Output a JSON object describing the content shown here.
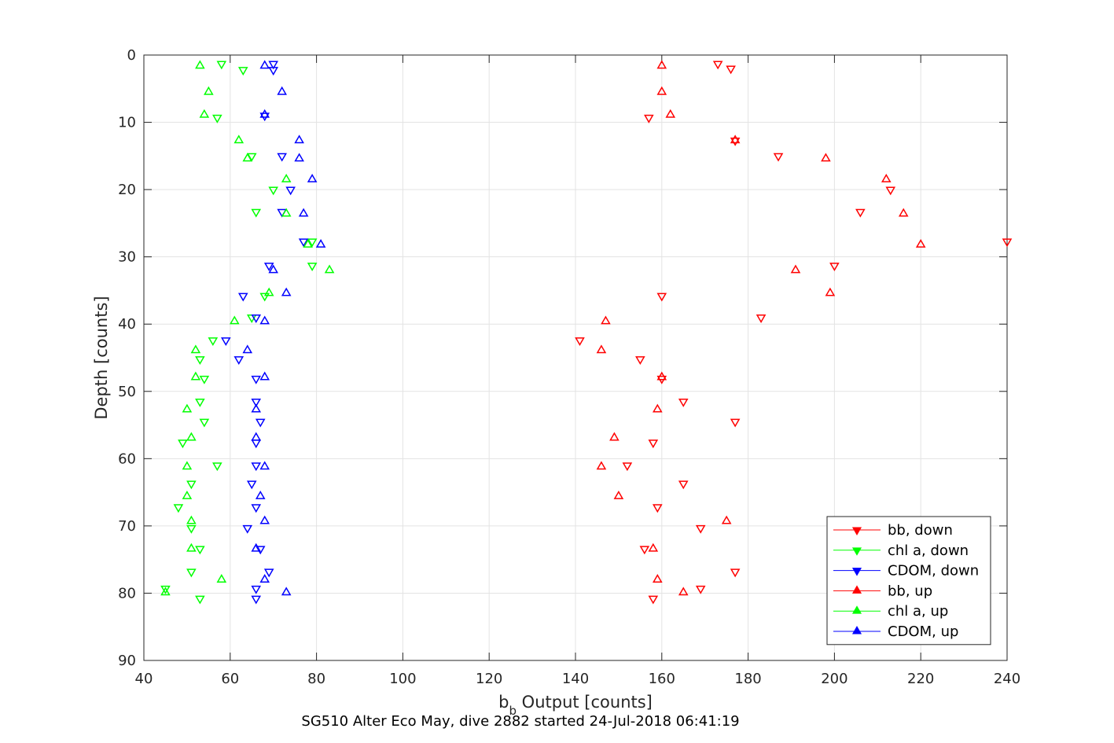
{
  "figure": {
    "caption": "SG510 Alter Eco May, dive 2882 started 24-Jul-2018 06:41:19"
  },
  "chart_data": {
    "type": "scatter",
    "title": "",
    "xlabel_main": "b",
    "xlabel_sub": "b",
    "xlabel_rest": " Output [counts]",
    "ylabel": "Depth [counts]",
    "xlim": [
      40,
      240
    ],
    "ylim": [
      90,
      0
    ],
    "y_reversed": true,
    "grid": true,
    "legend_position": "bottom-right",
    "x_ticks": [
      40,
      60,
      80,
      100,
      120,
      140,
      160,
      180,
      200,
      220,
      240
    ],
    "y_ticks": [
      0,
      10,
      20,
      30,
      40,
      50,
      60,
      70,
      80,
      90
    ],
    "series": [
      {
        "name": "bb, down",
        "color": "#ff0000",
        "marker": "triangle-down",
        "points": [
          [
            173,
            1.3
          ],
          [
            176,
            2.0
          ],
          [
            157,
            9.3
          ],
          [
            177,
            12.7
          ],
          [
            187,
            15.0
          ],
          [
            213,
            20.0
          ],
          [
            206,
            23.3
          ],
          [
            240,
            27.7
          ],
          [
            200,
            31.3
          ],
          [
            160,
            35.8
          ],
          [
            183,
            39.0
          ],
          [
            141,
            42.4
          ],
          [
            155,
            45.2
          ],
          [
            160,
            48.1
          ],
          [
            165,
            51.5
          ],
          [
            177,
            54.5
          ],
          [
            158,
            57.6
          ],
          [
            152,
            61.0
          ],
          [
            165,
            63.7
          ],
          [
            159,
            67.2
          ],
          [
            169,
            70.3
          ],
          [
            156,
            73.4
          ],
          [
            177,
            76.8
          ],
          [
            169,
            79.3
          ],
          [
            158,
            80.8
          ]
        ]
      },
      {
        "name": "chl a, down",
        "color": "#00ff00",
        "marker": "triangle-down",
        "points": [
          [
            58,
            1.3
          ],
          [
            63,
            2.2
          ],
          [
            57,
            9.3
          ],
          [
            65,
            15.0
          ],
          [
            70,
            20.0
          ],
          [
            66,
            23.3
          ],
          [
            79,
            27.7
          ],
          [
            79,
            31.3
          ],
          [
            68,
            35.8
          ],
          [
            65,
            39.0
          ],
          [
            56,
            42.4
          ],
          [
            53,
            45.2
          ],
          [
            54,
            48.1
          ],
          [
            53,
            51.5
          ],
          [
            54,
            54.5
          ],
          [
            49,
            57.6
          ],
          [
            57,
            61.0
          ],
          [
            51,
            63.7
          ],
          [
            48,
            67.2
          ],
          [
            51,
            70.3
          ],
          [
            53,
            73.4
          ],
          [
            51,
            76.8
          ],
          [
            45,
            79.3
          ],
          [
            53,
            80.8
          ]
        ]
      },
      {
        "name": "CDOM, down",
        "color": "#0000ff",
        "marker": "triangle-down",
        "points": [
          [
            70,
            1.3
          ],
          [
            70,
            2.2
          ],
          [
            68,
            9.0
          ],
          [
            72,
            15.0
          ],
          [
            74,
            20.0
          ],
          [
            72,
            23.3
          ],
          [
            77,
            27.7
          ],
          [
            69,
            31.3
          ],
          [
            63,
            35.8
          ],
          [
            66,
            39.0
          ],
          [
            59,
            42.4
          ],
          [
            62,
            45.2
          ],
          [
            66,
            48.1
          ],
          [
            66,
            51.5
          ],
          [
            67,
            54.5
          ],
          [
            66,
            57.6
          ],
          [
            66,
            61.0
          ],
          [
            65,
            63.7
          ],
          [
            66,
            67.2
          ],
          [
            64,
            70.3
          ],
          [
            67,
            73.4
          ],
          [
            69,
            76.8
          ],
          [
            66,
            79.3
          ],
          [
            66,
            80.8
          ]
        ]
      },
      {
        "name": "bb, up",
        "color": "#ff0000",
        "marker": "triangle-up",
        "points": [
          [
            160,
            1.6
          ],
          [
            160,
            5.5
          ],
          [
            162,
            8.9
          ],
          [
            177,
            12.7
          ],
          [
            198,
            15.4
          ],
          [
            212,
            18.5
          ],
          [
            216,
            23.6
          ],
          [
            220,
            28.2
          ],
          [
            191,
            32.0
          ],
          [
            199,
            35.4
          ],
          [
            147,
            39.6
          ],
          [
            146,
            43.9
          ],
          [
            160,
            47.9
          ],
          [
            159,
            52.7
          ],
          [
            149,
            56.9
          ],
          [
            146,
            61.2
          ],
          [
            150,
            65.6
          ],
          [
            175,
            69.3
          ],
          [
            158,
            73.4
          ],
          [
            159,
            78.0
          ],
          [
            165,
            79.9
          ]
        ]
      },
      {
        "name": "chl a, up",
        "color": "#00ff00",
        "marker": "triangle-up",
        "points": [
          [
            53,
            1.6
          ],
          [
            55,
            5.5
          ],
          [
            54,
            8.9
          ],
          [
            62,
            12.7
          ],
          [
            64,
            15.4
          ],
          [
            73,
            18.5
          ],
          [
            73,
            23.6
          ],
          [
            78,
            28.2
          ],
          [
            83,
            32.0
          ],
          [
            69,
            35.4
          ],
          [
            61,
            39.6
          ],
          [
            52,
            43.9
          ],
          [
            52,
            47.9
          ],
          [
            50,
            52.7
          ],
          [
            51,
            56.9
          ],
          [
            50,
            61.2
          ],
          [
            50,
            65.6
          ],
          [
            51,
            69.3
          ],
          [
            51,
            73.4
          ],
          [
            58,
            78.0
          ],
          [
            45,
            79.9
          ]
        ]
      },
      {
        "name": "CDOM, up",
        "color": "#0000ff",
        "marker": "triangle-up",
        "points": [
          [
            68,
            1.6
          ],
          [
            72,
            5.5
          ],
          [
            68,
            8.9
          ],
          [
            76,
            12.7
          ],
          [
            76,
            15.4
          ],
          [
            79,
            18.5
          ],
          [
            77,
            23.6
          ],
          [
            81,
            28.2
          ],
          [
            70,
            32.0
          ],
          [
            73,
            35.4
          ],
          [
            68,
            39.6
          ],
          [
            64,
            43.9
          ],
          [
            68,
            47.9
          ],
          [
            66,
            52.7
          ],
          [
            66,
            56.9
          ],
          [
            68,
            61.2
          ],
          [
            67,
            65.6
          ],
          [
            68,
            69.3
          ],
          [
            66,
            73.4
          ],
          [
            68,
            78.0
          ],
          [
            73,
            79.9
          ]
        ]
      }
    ]
  }
}
